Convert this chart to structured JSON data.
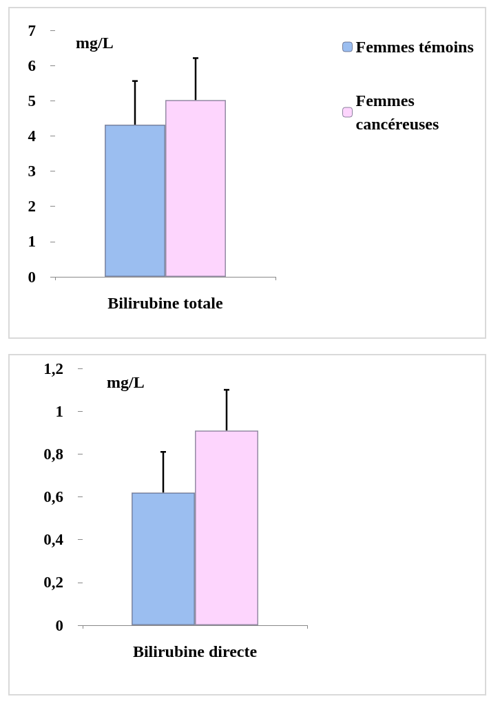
{
  "chart_data": [
    {
      "type": "bar",
      "categories": [
        "Bilirubine totale"
      ],
      "ylabel": "mg/L",
      "ylim": [
        0,
        7
      ],
      "yticks": [
        0,
        1,
        2,
        3,
        4,
        5,
        6,
        7
      ],
      "grid": false,
      "legend": "top right",
      "series": [
        {
          "name": "Femmes témoins",
          "color": "#9bbef0",
          "values": [
            4.32
          ],
          "errors": [
            1.24
          ]
        },
        {
          "name": "Femmes cancéreuses",
          "color": "#fdd5fd",
          "values": [
            5.02
          ],
          "errors": [
            1.19
          ]
        }
      ]
    },
    {
      "type": "bar",
      "categories": [
        "Bilirubine directe"
      ],
      "ylabel": "mg/L",
      "ylim": [
        0,
        1.2
      ],
      "yticks": [
        0,
        {
          "value": 0.2,
          "label": "0,2"
        },
        {
          "value": 0.4,
          "label": "0,4"
        },
        {
          "value": 0.6,
          "label": "0,6"
        },
        {
          "value": 0.8,
          "label": "0,8"
        },
        1,
        {
          "value": 1.2,
          "label": "1,2"
        }
      ],
      "grid": false,
      "legend": false,
      "series": [
        {
          "color": "#9bbef0",
          "values": [
            0.62
          ],
          "errors": [
            0.19
          ]
        },
        {
          "color": "#fdd5fd",
          "values": [
            0.91
          ],
          "errors": [
            0.19
          ]
        }
      ]
    }
  ]
}
